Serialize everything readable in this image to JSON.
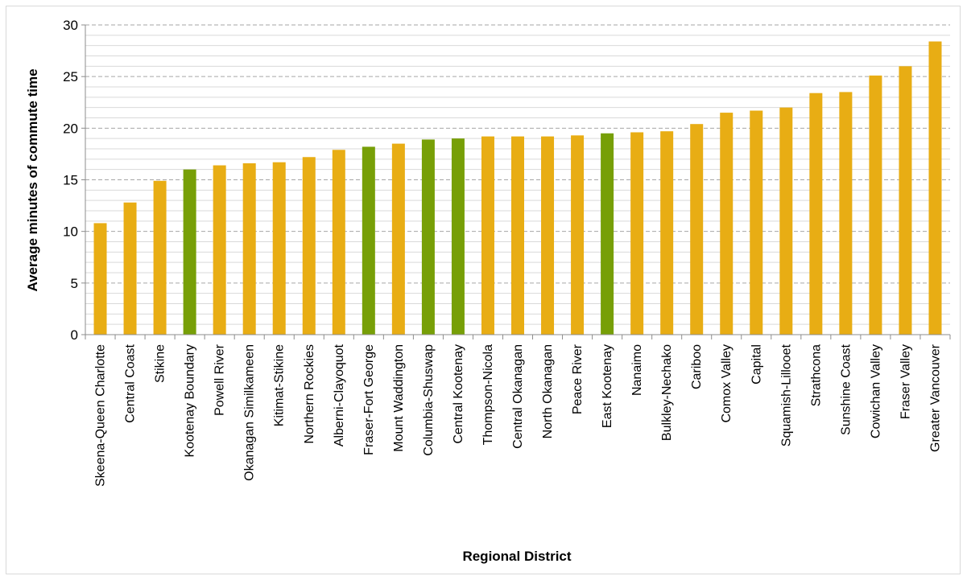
{
  "chart_data": {
    "type": "bar",
    "title": "",
    "xlabel": "Regional District",
    "ylabel": "Average minutes of commute time",
    "ylim": [
      0,
      30
    ],
    "yticks": [
      0,
      5,
      10,
      15,
      20,
      25,
      30
    ],
    "minor_grid_step": 1,
    "grid": true,
    "legend": "none",
    "colors": {
      "default": "#e8ad14",
      "highlight": "#779f07",
      "major_grid": "#a6a6a6",
      "minor_grid": "#d9d9d9",
      "axis": "#8c8c8c"
    },
    "categories": [
      "Skeena-Queen Charlotte",
      "Central Coast",
      "Stikine",
      "Kootenay Boundary",
      "Powell River",
      "Okanagan Similkameen",
      "Kitimat-Stikine",
      "Northern Rockies",
      "Alberni-Clayoquot",
      "Fraser-Fort George",
      "Mount Waddington",
      "Columbia-Shuswap",
      "Central Kootenay",
      "Thompson-Nicola",
      "Central Okanagan",
      "North Okanagan",
      "Peace River",
      "East Kootenay",
      "Nanaimo",
      "Bulkley-Nechako",
      "Cariboo",
      "Comox Valley",
      "Capital",
      "Squamish-Lillooet",
      "Strathcona",
      "Sunshine Coast",
      "Cowichan Valley",
      "Fraser Valley",
      "Greater Vancouver"
    ],
    "values": [
      10.8,
      12.8,
      14.9,
      16.0,
      16.4,
      16.6,
      16.7,
      17.2,
      17.9,
      18.2,
      18.5,
      18.9,
      19.0,
      19.2,
      19.2,
      19.2,
      19.3,
      19.5,
      19.6,
      19.7,
      20.4,
      21.5,
      21.7,
      22.0,
      23.4,
      23.5,
      25.1,
      26.0,
      28.4
    ],
    "highlighted": [
      false,
      false,
      false,
      true,
      false,
      false,
      false,
      false,
      false,
      true,
      false,
      true,
      true,
      false,
      false,
      false,
      false,
      true,
      false,
      false,
      false,
      false,
      false,
      false,
      false,
      false,
      false,
      false,
      false
    ]
  }
}
